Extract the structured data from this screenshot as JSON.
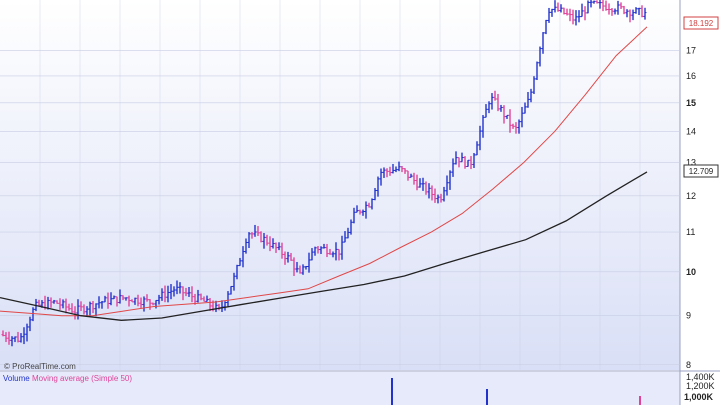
{
  "credit": "© ProRealTime.com",
  "volume_panel": {
    "label_volume": "Volume",
    "label_ma": "Moving average (Simple 50)",
    "ticks": [
      "1,400K",
      "1,200K",
      "1,000K"
    ]
  },
  "price_badges": {
    "last_price": "18.192",
    "long_ma": "12.709"
  },
  "colors": {
    "up": "#2233cc",
    "down": "#e0449a",
    "ma_short": "#e04848",
    "ma_long": "#222222",
    "background_top": "#ffffff",
    "background_bottom": "#d9dff6",
    "grid": "#c8cde4"
  },
  "chart_data": {
    "type": "ohlc",
    "y_scale": "log",
    "ylim": [
      7.9,
      19.2
    ],
    "y_ticks": [
      8,
      9,
      10,
      11,
      12,
      13,
      14,
      15,
      16,
      17
    ],
    "y_tick_labels": [
      "8",
      "9",
      "10",
      "11",
      "12",
      "13",
      "14",
      "15",
      "16",
      "17"
    ],
    "bold_ticks": [
      10,
      15
    ],
    "series_ma_short": [
      9.1,
      9.05,
      9.0,
      9.0,
      9.1,
      9.2,
      9.25,
      9.3,
      9.4,
      9.5,
      9.6,
      9.9,
      10.2,
      10.6,
      11.0,
      11.5,
      12.2,
      13.0,
      14.0,
      15.3,
      16.8,
      18.0
    ],
    "series_ma_long": [
      9.4,
      9.2,
      9.0,
      8.9,
      8.95,
      9.1,
      9.25,
      9.4,
      9.55,
      9.7,
      9.9,
      10.2,
      10.5,
      10.8,
      11.3,
      12.0,
      12.709
    ],
    "volume_spikes": [
      1400,
      1150,
      1000
    ],
    "bars_uptrend_last": 18.192
  }
}
